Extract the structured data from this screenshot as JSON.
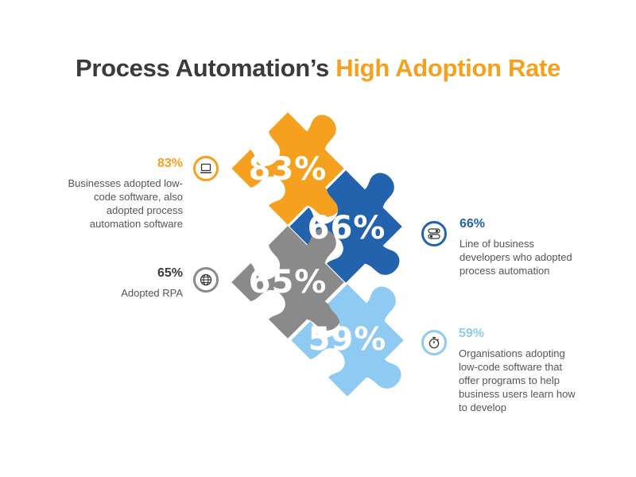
{
  "title": {
    "main": "Process Automation’s ",
    "accent": "High Adoption Rate"
  },
  "colors": {
    "title_dark": "#3b3b3b",
    "orange": "#f5a01e",
    "dark_blue": "#2363ad",
    "gray": "#8a8a8a",
    "light_blue": "#8fcaf3"
  },
  "pieces": [
    {
      "label": "83%",
      "color": "#f5a01e"
    },
    {
      "label": "66%",
      "color": "#2363ad"
    },
    {
      "label": "65%",
      "color": "#8a8a8a"
    },
    {
      "label": "59%",
      "color": "#8fcaf3"
    }
  ],
  "stats": [
    {
      "value": "83%",
      "text": "Businesses adopted low-\ncode  software, also\nadopted process\nautomation software",
      "icon": "laptop-icon",
      "color": "#f5a01e"
    },
    {
      "value": "66%",
      "text": "Line of business\ndevelopers who adopted\nprocess automation",
      "icon": "toggle-switch-icon",
      "color": "#2363ad"
    },
    {
      "value": "65%",
      "text": "Adopted RPA",
      "icon": "globe-icon",
      "color": "#8a8a8a"
    },
    {
      "value": "59%",
      "text": "Organisations adopting\nlow-code software that\noffer programs to help\nbusiness users learn how\nto develop",
      "icon": "stopwatch-icon",
      "color": "#8fcaf3"
    }
  ]
}
